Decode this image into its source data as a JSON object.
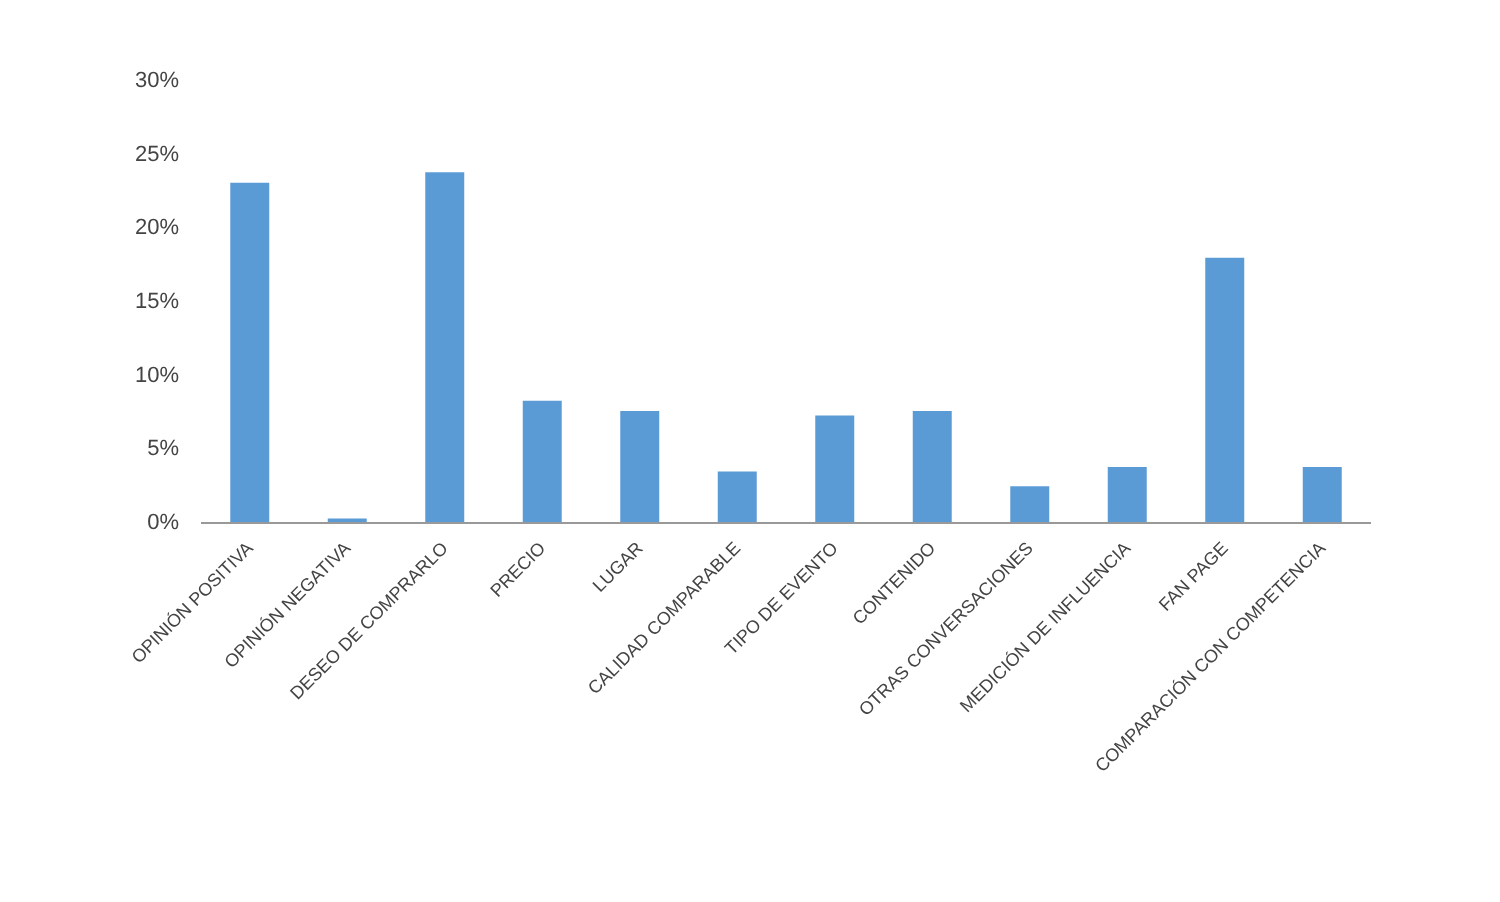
{
  "chart_data": {
    "type": "bar",
    "categories": [
      "OPINIÓN POSITIVA",
      "OPINIÓN NEGATIVA",
      "DESEO DE COMPRARLO",
      "PRECIO",
      "LUGAR",
      "CALIDAD COMPARABLE",
      "TIPO DE EVENTO",
      "CONTENIDO",
      "OTRAS CONVERSACIONES",
      "MEDICIÓN DE INFLUENCIA",
      "FAN PAGE",
      "COMPARACIÓN CON COMPETENCIA"
    ],
    "values": [
      23.1,
      0.3,
      23.8,
      8.3,
      7.6,
      3.5,
      7.3,
      7.6,
      2.5,
      3.8,
      18.0,
      3.8
    ],
    "color": "#5b9bd5",
    "ylim": [
      0,
      30
    ],
    "yticks": [
      {
        "value": 0,
        "label": "0%"
      },
      {
        "value": 5,
        "label": "5%"
      },
      {
        "value": 10,
        "label": "10%"
      },
      {
        "value": 15,
        "label": "15%"
      },
      {
        "value": 20,
        "label": "20%"
      },
      {
        "value": 25,
        "label": "25%"
      },
      {
        "value": 30,
        "label": "30%"
      }
    ],
    "grid": false
  }
}
